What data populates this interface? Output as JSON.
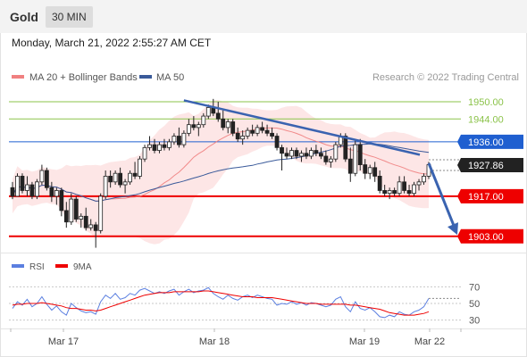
{
  "header": {
    "symbol": "Gold",
    "timeframe": "30 MIN",
    "datetime": "Monday, March 21, 2022 2:55:27 AM CET"
  },
  "legend": {
    "ma20_bb": "MA 20 + Bollinger Bands",
    "ma50": "MA 50",
    "credit": "Research © 2022 Trading Central",
    "rsi": "RSI",
    "rsi_ma": "9MA"
  },
  "colors": {
    "ma20": "#f08080",
    "bands_fill": "#fde2e2",
    "ma50": "#3a5a9a",
    "resistance_green": "#8bc34a",
    "pivot_blue": "#1f5fd0",
    "support_red": "#ee0000",
    "price_tag": "#222222",
    "rsi": "#5b7fe0",
    "rsi_ma": "#ee0000",
    "trend_arrow": "#3a63b0"
  },
  "chart_data": [
    {
      "type": "candlestick",
      "title": "Gold",
      "ylim": [
        1897,
        1955
      ],
      "x_ticks": [
        "Mar 17",
        "Mar 18",
        "Mar 19",
        "Mar 22"
      ],
      "indicators": [
        "MA 20 + Bollinger Bands",
        "MA 50"
      ],
      "levels": [
        {
          "value": 1950.0,
          "label": "1950.00",
          "kind": "resistance"
        },
        {
          "value": 1944.0,
          "label": "1944.00",
          "kind": "resistance"
        },
        {
          "value": 1936.0,
          "label": "1936.00",
          "kind": "pivot"
        },
        {
          "value": 1927.86,
          "label": "1927.86",
          "kind": "last"
        },
        {
          "value": 1917.0,
          "label": "1917.00",
          "kind": "support"
        },
        {
          "value": 1903.0,
          "label": "1903.00",
          "kind": "support"
        }
      ],
      "trendline": {
        "from": 1950.5,
        "to": 1931.5
      },
      "arrow": {
        "from": 1928.5,
        "to": 1903.5
      },
      "candles": [
        [
          1920,
          1922,
          1916,
          1917
        ],
        [
          1917,
          1925,
          1917,
          1924
        ],
        [
          1924,
          1925,
          1918,
          1919
        ],
        [
          1919,
          1924,
          1917,
          1921
        ],
        [
          1921,
          1922,
          1916,
          1917
        ],
        [
          1917,
          1923,
          1916,
          1922
        ],
        [
          1922,
          1928,
          1921,
          1926
        ],
        [
          1926,
          1927,
          1919,
          1920
        ],
        [
          1920,
          1922,
          1915,
          1917
        ],
        [
          1917,
          1920,
          1914,
          1919
        ],
        [
          1919,
          1920,
          1910,
          1912
        ],
        [
          1912,
          1915,
          1906,
          1908
        ],
        [
          1908,
          1918,
          1907,
          1916
        ],
        [
          1916,
          1917,
          1908,
          1909
        ],
        [
          1909,
          1911,
          1906,
          1910
        ],
        [
          1910,
          1913,
          1905,
          1906
        ],
        [
          1906,
          1909,
          1905,
          1907
        ],
        [
          1907,
          1908,
          1899,
          1905
        ],
        [
          1905,
          1918,
          1904,
          1917
        ],
        [
          1917,
          1926,
          1916,
          1924
        ],
        [
          1924,
          1926,
          1920,
          1922
        ],
        [
          1922,
          1926,
          1921,
          1925
        ],
        [
          1925,
          1927,
          1920,
          1921
        ],
        [
          1921,
          1923,
          1918,
          1922
        ],
        [
          1922,
          1926,
          1921,
          1925
        ],
        [
          1925,
          1929,
          1923,
          1924
        ],
        [
          1924,
          1931,
          1923,
          1930
        ],
        [
          1930,
          1935,
          1929,
          1934
        ],
        [
          1934,
          1938,
          1933,
          1935
        ],
        [
          1935,
          1937,
          1932,
          1933
        ],
        [
          1933,
          1936,
          1932,
          1935
        ],
        [
          1935,
          1937,
          1933,
          1934
        ],
        [
          1934,
          1937,
          1933,
          1936
        ],
        [
          1936,
          1939,
          1935,
          1938
        ],
        [
          1938,
          1941,
          1934,
          1935
        ],
        [
          1935,
          1940,
          1934,
          1939
        ],
        [
          1939,
          1944,
          1938,
          1942
        ],
        [
          1942,
          1945,
          1940,
          1941
        ],
        [
          1941,
          1943,
          1938,
          1942
        ],
        [
          1942,
          1946,
          1941,
          1945
        ],
        [
          1945,
          1949,
          1944,
          1948
        ],
        [
          1948,
          1951,
          1945,
          1946
        ],
        [
          1946,
          1950,
          1943,
          1944
        ],
        [
          1944,
          1947,
          1940,
          1941
        ],
        [
          1941,
          1944,
          1939,
          1943
        ],
        [
          1943,
          1944,
          1938,
          1939
        ],
        [
          1939,
          1941,
          1936,
          1937
        ],
        [
          1937,
          1940,
          1935,
          1938
        ],
        [
          1938,
          1941,
          1937,
          1940
        ],
        [
          1940,
          1942,
          1938,
          1939
        ],
        [
          1939,
          1942,
          1938,
          1941
        ],
        [
          1941,
          1943,
          1939,
          1940
        ],
        [
          1940,
          1942,
          1938,
          1939
        ],
        [
          1939,
          1941,
          1937,
          1938
        ],
        [
          1938,
          1939,
          1933,
          1934
        ],
        [
          1934,
          1935,
          1926,
          1932
        ],
        [
          1932,
          1934,
          1930,
          1931
        ],
        [
          1931,
          1934,
          1930,
          1933
        ],
        [
          1933,
          1934,
          1930,
          1931
        ],
        [
          1931,
          1933,
          1929,
          1932
        ],
        [
          1932,
          1934,
          1930,
          1931
        ],
        [
          1931,
          1934,
          1930,
          1933
        ],
        [
          1933,
          1935,
          1931,
          1932
        ],
        [
          1932,
          1934,
          1930,
          1931
        ],
        [
          1931,
          1933,
          1928,
          1929
        ],
        [
          1929,
          1931,
          1927,
          1930
        ],
        [
          1930,
          1936,
          1929,
          1935
        ],
        [
          1935,
          1939,
          1934,
          1938
        ],
        [
          1938,
          1939,
          1929,
          1930
        ],
        [
          1930,
          1934,
          1922,
          1925
        ],
        [
          1925,
          1937,
          1924,
          1935
        ],
        [
          1935,
          1937,
          1926,
          1928
        ],
        [
          1928,
          1930,
          1923,
          1925
        ],
        [
          1925,
          1928,
          1923,
          1927
        ],
        [
          1927,
          1929,
          1922,
          1924
        ],
        [
          1924,
          1926,
          1918,
          1919
        ],
        [
          1919,
          1921,
          1917,
          1918
        ],
        [
          1918,
          1920,
          1916,
          1919
        ],
        [
          1919,
          1920,
          1917,
          1918
        ],
        [
          1918,
          1924,
          1917,
          1922
        ],
        [
          1922,
          1924,
          1918,
          1919
        ],
        [
          1919,
          1921,
          1917,
          1918
        ],
        [
          1918,
          1922,
          1917,
          1921
        ],
        [
          1921,
          1923,
          1919,
          1922
        ],
        [
          1922,
          1925,
          1921,
          1924
        ],
        [
          1924,
          1929,
          1923,
          1928
        ]
      ]
    },
    {
      "type": "line",
      "title": "RSI",
      "ylim": [
        20,
        80
      ],
      "y_ticks": [
        30,
        50,
        70
      ],
      "series": [
        {
          "name": "RSI",
          "values": [
            44,
            52,
            48,
            55,
            46,
            50,
            58,
            49,
            42,
            47,
            40,
            36,
            50,
            45,
            41,
            39,
            40,
            37,
            52,
            60,
            56,
            62,
            55,
            57,
            62,
            60,
            66,
            68,
            65,
            62,
            64,
            62,
            65,
            67,
            60,
            64,
            67,
            63,
            65,
            66,
            69,
            62,
            58,
            55,
            60,
            56,
            54,
            58,
            60,
            57,
            60,
            58,
            56,
            55,
            48,
            50,
            49,
            52,
            49,
            51,
            48,
            51,
            50,
            48,
            46,
            48,
            55,
            58,
            46,
            40,
            52,
            44,
            42,
            45,
            40,
            34,
            33,
            36,
            34,
            40,
            37,
            36,
            40,
            42,
            46,
            56
          ]
        },
        {
          "name": "9MA",
          "values": [
            48,
            49,
            49,
            50,
            50,
            50,
            51,
            50,
            49,
            48,
            47,
            45,
            44,
            44,
            43,
            42,
            42,
            41,
            42,
            44,
            46,
            48,
            50,
            52,
            54,
            56,
            58,
            60,
            61,
            62,
            63,
            63,
            63,
            64,
            64,
            64,
            64,
            64,
            64,
            65,
            65,
            64,
            63,
            62,
            61,
            60,
            59,
            58,
            58,
            58,
            57,
            57,
            57,
            57,
            56,
            55,
            54,
            53,
            52,
            51,
            50,
            50,
            50,
            49,
            49,
            49,
            49,
            49,
            49,
            48,
            48,
            47,
            46,
            45,
            44,
            43,
            41,
            39,
            38,
            37,
            36,
            36,
            36,
            37,
            38,
            40
          ]
        }
      ]
    }
  ]
}
